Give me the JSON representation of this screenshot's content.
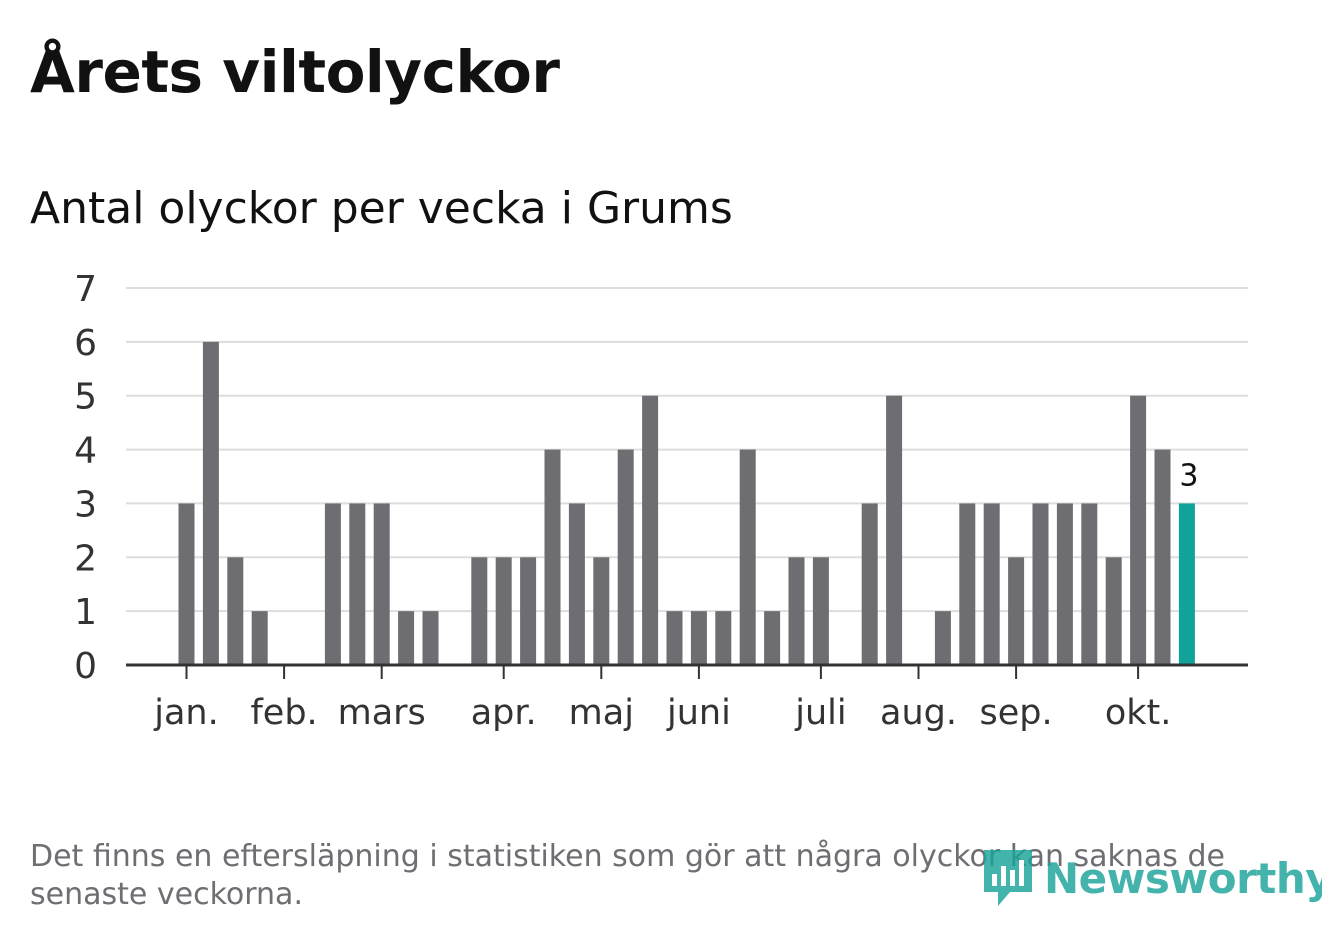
{
  "title": "Årets viltolyckor",
  "subtitle": "Antal olyckor per vecka i Grums",
  "footnote": "Det finns en eftersläpning i statistiken som gör att några olyckor kan saknas de senaste veckorna.",
  "logo": {
    "text": "Newsworthy",
    "icon": "newsworthy-logo-icon",
    "color": "#1aa39a"
  },
  "colors": {
    "bar": "#6e6d72",
    "highlight": "#11a39a",
    "grid": "#dddddd",
    "axis": "#333333"
  },
  "chart_data": {
    "type": "bar",
    "ylim": [
      0,
      7
    ],
    "yticks": [
      0,
      1,
      2,
      3,
      4,
      5,
      6,
      7
    ],
    "grid": true,
    "values": [
      null,
      null,
      3,
      6,
      2,
      1,
      0,
      0,
      3,
      3,
      3,
      1,
      1,
      0,
      2,
      2,
      2,
      4,
      3,
      2,
      4,
      5,
      1,
      1,
      1,
      4,
      1,
      2,
      2,
      0,
      3,
      5,
      0,
      1,
      3,
      3,
      2,
      3,
      3,
      3,
      2,
      5,
      4,
      3
    ],
    "highlight_index": 43,
    "highlight_label": "3",
    "month_labels": [
      {
        "label": "jan.",
        "index": 2.5
      },
      {
        "label": "feb.",
        "index": 6.5
      },
      {
        "label": "mars",
        "index": 10.5
      },
      {
        "label": "apr.",
        "index": 15.5
      },
      {
        "label": "maj",
        "index": 19.5
      },
      {
        "label": "juni",
        "index": 23.5
      },
      {
        "label": "juli",
        "index": 28.5
      },
      {
        "label": "aug.",
        "index": 32.5
      },
      {
        "label": "sep.",
        "index": 36.5
      },
      {
        "label": "okt.",
        "index": 41.5
      }
    ]
  }
}
